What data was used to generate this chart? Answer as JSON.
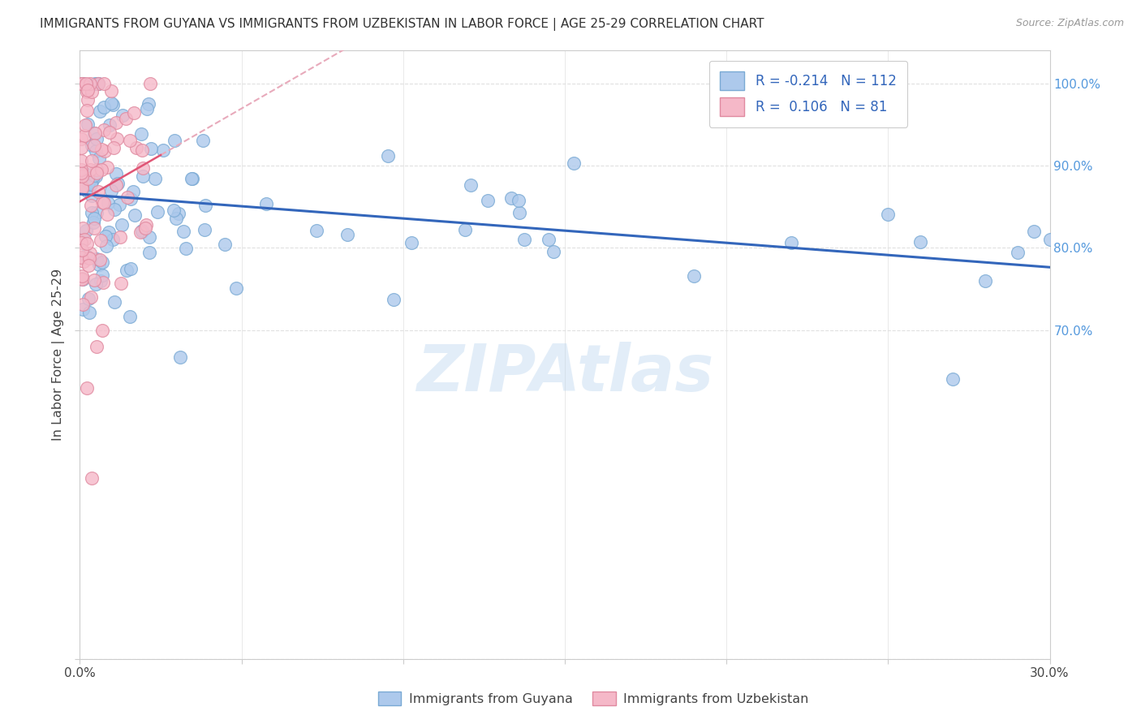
{
  "title": "IMMIGRANTS FROM GUYANA VS IMMIGRANTS FROM UZBEKISTAN IN LABOR FORCE | AGE 25-29 CORRELATION CHART",
  "source": "Source: ZipAtlas.com",
  "ylabel": "In Labor Force | Age 25-29",
  "xlim": [
    0.0,
    0.3
  ],
  "ylim": [
    0.3,
    1.04
  ],
  "guyana_color": "#adc9ec",
  "uzbekistan_color": "#f5b8c8",
  "guyana_edge": "#7aaad4",
  "uzbekistan_edge": "#e08aa0",
  "trend_guyana_color": "#3366bb",
  "trend_uzbekistan_color": "#e05575",
  "trend_uzbekistan_dashed_color": "#e8aabb",
  "R_guyana": -0.214,
  "N_guyana": 112,
  "R_uzbekistan": 0.106,
  "N_uzbekistan": 81,
  "background_color": "#ffffff",
  "watermark": "ZIPAtlas",
  "right_ytick_color": "#5599dd"
}
